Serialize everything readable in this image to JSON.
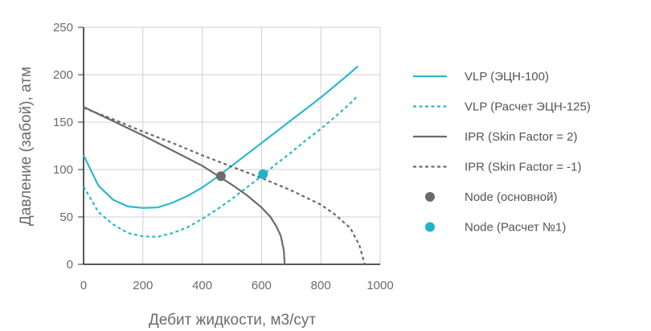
{
  "chart_data": {
    "type": "line",
    "xlabel": "Дебит жидкости, м3/сут",
    "ylabel": "Давление (забой), атм",
    "xlim": [
      0,
      1000
    ],
    "ylim": [
      0,
      250
    ],
    "x_ticks": [
      0,
      200,
      400,
      600,
      800,
      1000
    ],
    "y_ticks": [
      0,
      50,
      100,
      150,
      200,
      250
    ],
    "grid": true,
    "legend_position": "right",
    "series": [
      {
        "name": "VLP (ЭЦН-100)",
        "color": "#2bb8cf",
        "dash": "solid",
        "points": [
          [
            0,
            115
          ],
          [
            50,
            83
          ],
          [
            100,
            68
          ],
          [
            150,
            61
          ],
          [
            200,
            59.5
          ],
          [
            250,
            60
          ],
          [
            300,
            65
          ],
          [
            350,
            72
          ],
          [
            400,
            81
          ],
          [
            450,
            92
          ],
          [
            500,
            104
          ],
          [
            550,
            116
          ],
          [
            600,
            128
          ],
          [
            650,
            140
          ],
          [
            700,
            152
          ],
          [
            750,
            164
          ],
          [
            800,
            176
          ],
          [
            850,
            189
          ],
          [
            900,
            202
          ],
          [
            925,
            209
          ]
        ]
      },
      {
        "name": "VLP (Расчет ЭЦН-125)",
        "color": "#2bb8cf",
        "dash": "dotted",
        "points": [
          [
            0,
            82
          ],
          [
            50,
            55
          ],
          [
            100,
            42
          ],
          [
            150,
            33
          ],
          [
            200,
            29.5
          ],
          [
            250,
            29
          ],
          [
            300,
            33
          ],
          [
            350,
            39
          ],
          [
            400,
            48
          ],
          [
            450,
            58
          ],
          [
            500,
            69
          ],
          [
            550,
            81
          ],
          [
            600,
            93
          ],
          [
            650,
            106
          ],
          [
            700,
            118
          ],
          [
            750,
            131
          ],
          [
            800,
            143
          ],
          [
            850,
            156
          ],
          [
            900,
            170
          ],
          [
            925,
            178
          ]
        ]
      },
      {
        "name": "IPR (Skin Factor = 2)",
        "color": "#6b6b6b",
        "dash": "solid",
        "points": [
          [
            0,
            166
          ],
          [
            100,
            151
          ],
          [
            200,
            136
          ],
          [
            300,
            120
          ],
          [
            400,
            104
          ],
          [
            460,
            92
          ],
          [
            500,
            84
          ],
          [
            550,
            73
          ],
          [
            600,
            60
          ],
          [
            630,
            50
          ],
          [
            650,
            40
          ],
          [
            665,
            30
          ],
          [
            675,
            15
          ],
          [
            678,
            0
          ]
        ]
      },
      {
        "name": "IPR (Skin Factor = -1)",
        "color": "#6b6b6b",
        "dash": "dotted",
        "points": [
          [
            0,
            165
          ],
          [
            100,
            153
          ],
          [
            200,
            140
          ],
          [
            300,
            128
          ],
          [
            400,
            115
          ],
          [
            500,
            103
          ],
          [
            600,
            91
          ],
          [
            700,
            78
          ],
          [
            800,
            63
          ],
          [
            850,
            52
          ],
          [
            900,
            38
          ],
          [
            930,
            20
          ],
          [
            948,
            0
          ]
        ]
      }
    ],
    "nodes": [
      {
        "name": "Node (основной)",
        "color": "#6b6b6b",
        "x": 463,
        "y": 93
      },
      {
        "name": "Node (Расчет №1)",
        "color": "#1fb3c9",
        "x": 605,
        "y": 95
      }
    ]
  }
}
